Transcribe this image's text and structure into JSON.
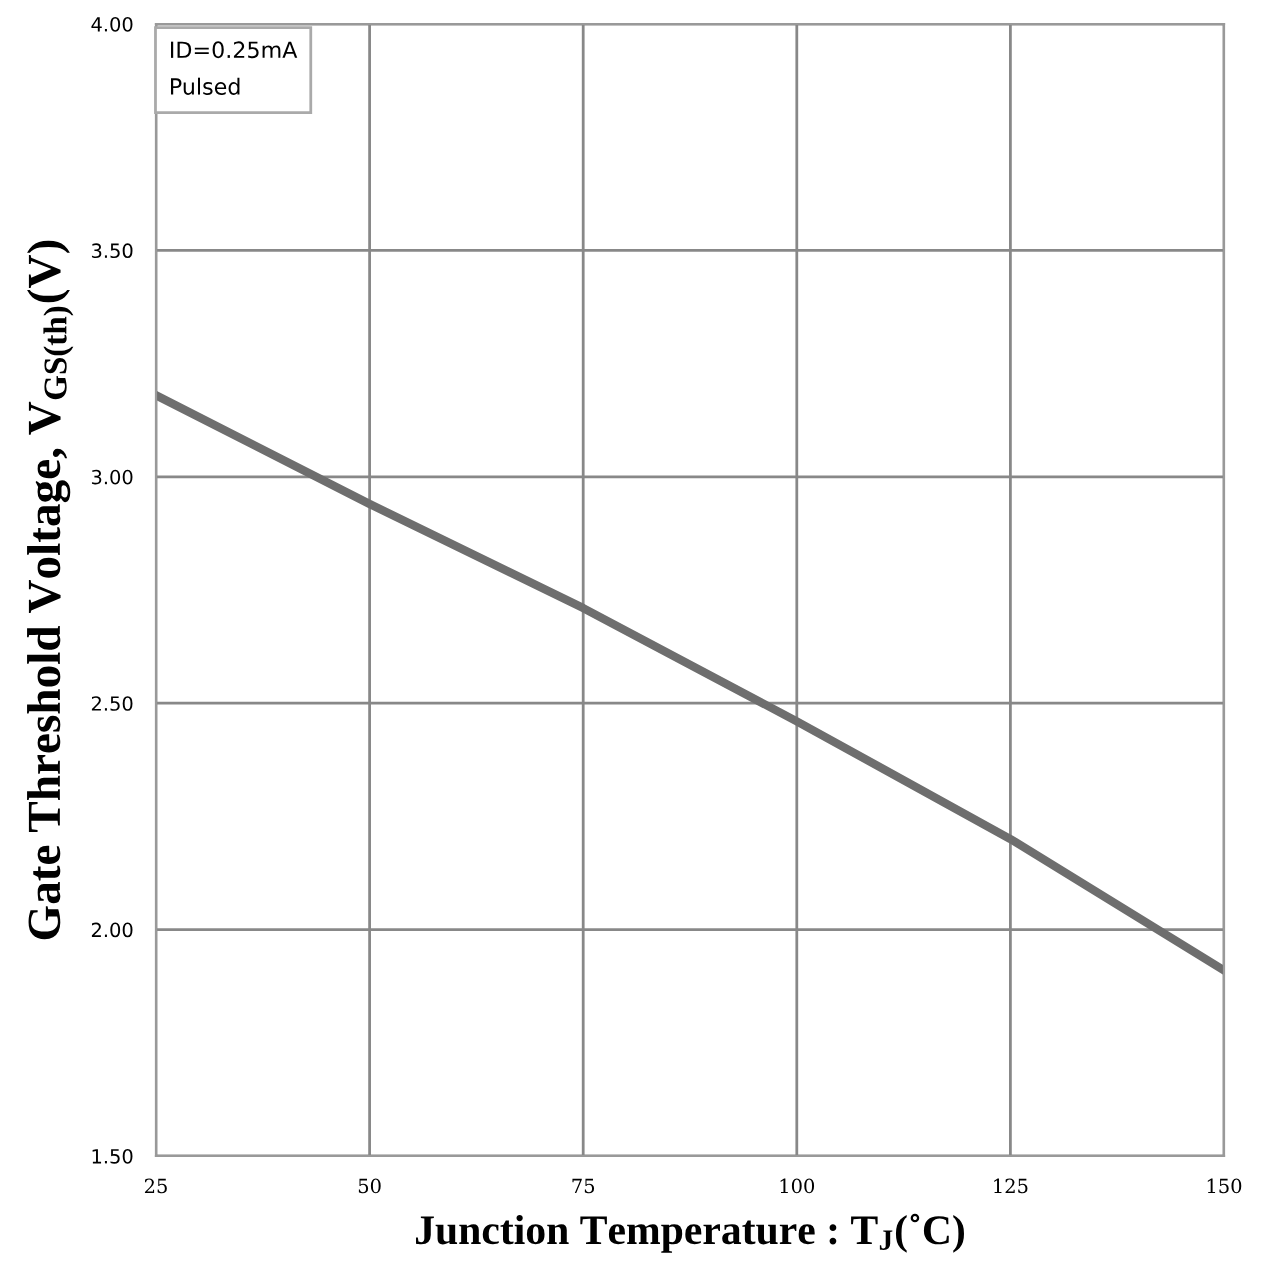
{
  "chart_data": {
    "type": "line",
    "xlabel": "Junction Temperature : T$_{J}$(˚C)",
    "ylabel": "Gate Threshold Voltage, V$_{GS(th)}$(V)",
    "annotations": [
      "ID=0.25mA\nPulsed"
    ],
    "x": [
      25,
      50,
      75,
      100,
      125,
      150
    ],
    "series": [
      {
        "color": "#6e6e6e",
        "values": [
          3.18,
          2.94,
          2.71,
          2.46,
          2.2,
          1.91
        ]
      }
    ],
    "xlim": [
      25,
      150
    ],
    "xticks": [
      25,
      50,
      75,
      100,
      125,
      150
    ],
    "ylim": [
      1.5,
      4.0
    ],
    "yticks": [
      {
        "value": 1.5,
        "label": "1.50"
      },
      {
        "value": 2.0,
        "label": "2.00"
      },
      {
        "value": 2.5,
        "label": "2.50"
      },
      {
        "value": 3.0,
        "label": "3.00"
      },
      {
        "value": 3.5,
        "label": "3.50"
      },
      {
        "value": 4.0,
        "label": "4.00"
      }
    ],
    "grid": true,
    "marker": "none",
    "line_style": "solid"
  }
}
